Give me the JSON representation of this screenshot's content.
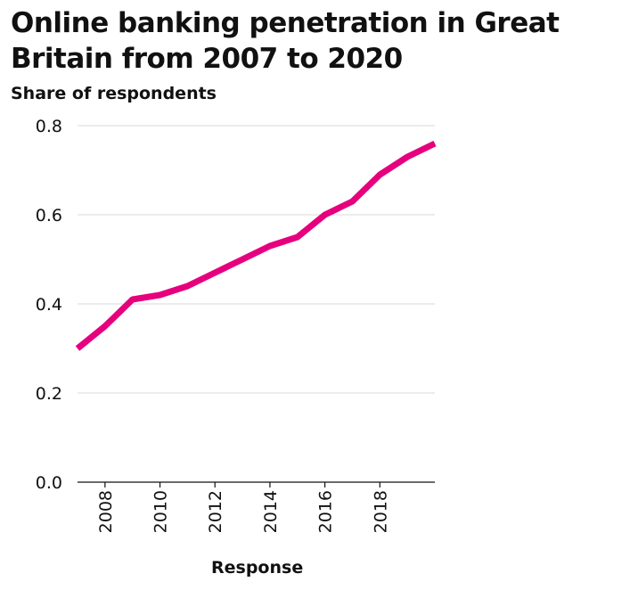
{
  "chart_data": {
    "type": "line",
    "title": "Online banking penetration in Great Britain from 2007 to 2020",
    "xlabel": "Response",
    "ylabel": "Share of respondents",
    "xlim": [
      2007,
      2020
    ],
    "ylim": [
      0,
      0.8
    ],
    "x_ticks": [
      2008,
      2010,
      2012,
      2014,
      2016,
      2018
    ],
    "x_tick_labels": [
      "2008",
      "2010",
      "2012",
      "2014",
      "2016",
      "2018"
    ],
    "y_ticks": [
      0,
      0.2,
      0.4,
      0.6,
      0.8
    ],
    "y_tick_labels": [
      "0.0",
      "0.2",
      "0.4",
      "0.6",
      "0.8"
    ],
    "grid": "horizontal",
    "legend": "none",
    "series": [
      {
        "color": "#e6007e",
        "x": [
          2007,
          2008,
          2009,
          2010,
          2011,
          2012,
          2013,
          2014,
          2015,
          2016,
          2017,
          2018,
          2019,
          2020
        ],
        "y": [
          0.3,
          0.35,
          0.41,
          0.42,
          0.44,
          0.47,
          0.5,
          0.53,
          0.55,
          0.6,
          0.63,
          0.69,
          0.73,
          0.76
        ]
      }
    ]
  }
}
